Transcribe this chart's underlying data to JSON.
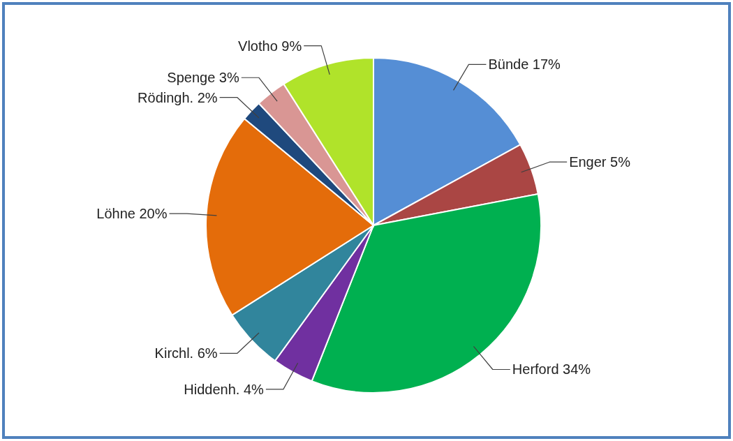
{
  "chart_data": {
    "type": "pie",
    "categories": [
      "Bünde",
      "Enger",
      "Herford",
      "Hiddenh.",
      "Kirchl.",
      "Löhne",
      "Rödingh.",
      "Spenge",
      "Vlotho"
    ],
    "values": [
      17,
      5,
      34,
      4,
      6,
      20,
      2,
      3,
      9
    ],
    "value_labels": [
      "17%",
      "5%",
      "34%",
      "4%",
      "6%",
      "20%",
      "2%",
      "3%",
      "9%"
    ],
    "colors": [
      "#558ed5",
      "#aa4644",
      "#00b050",
      "#7030a0",
      "#31859c",
      "#e46c0a",
      "#1f497d",
      "#d99694",
      "#b0e32a"
    ],
    "legend": false
  }
}
